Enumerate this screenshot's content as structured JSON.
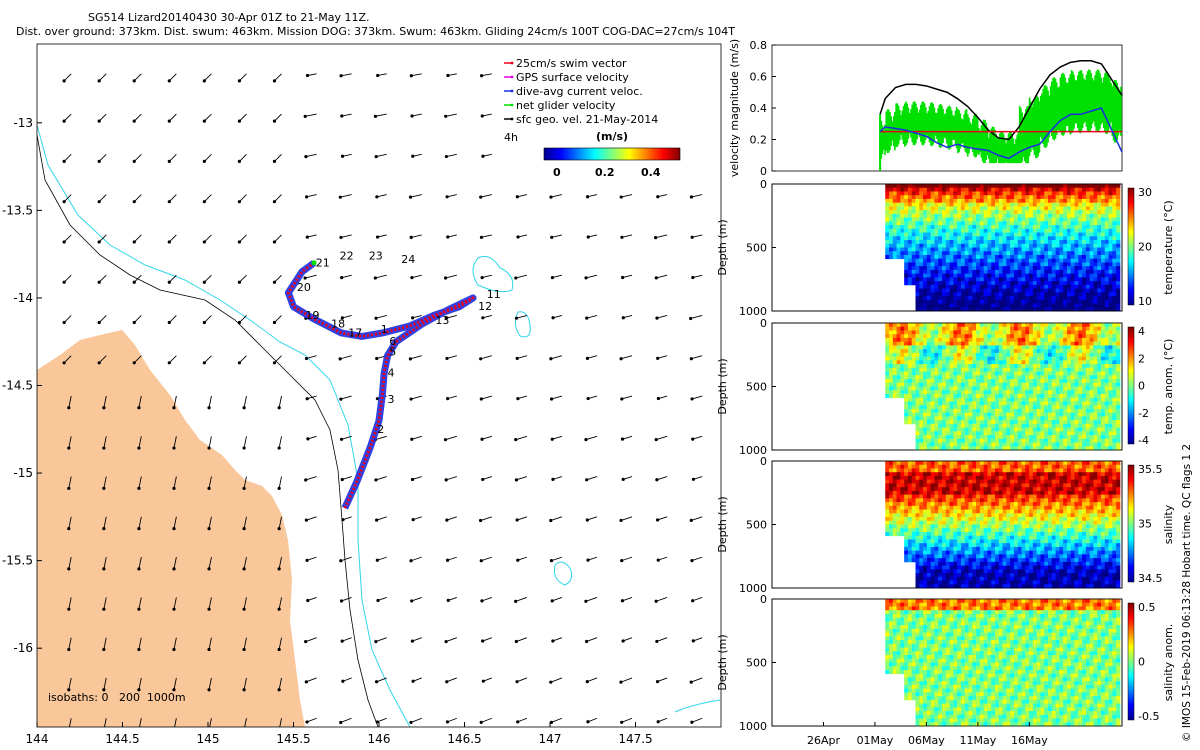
{
  "title": {
    "line1": "SG514 Lizard20140430 30-Apr 01Z to 21-May 11Z.",
    "line2": "Dist. over ground: 373km. Dist. swum: 463km. Mission DOG: 373km. Swum: 463km. Gliding 24cm/s 100T COG-DAC=27cm/s 104T"
  },
  "colors": {
    "land": "#f9c79a",
    "coast200": "#33d6ea",
    "track_swim": "#e8001c",
    "track_dac": "#1a2ee0",
    "net_velocity": "#00e000",
    "gps_velocity": "#e000e0",
    "vel_black": "#000000"
  },
  "chart_data": [
    {
      "id": "map",
      "type": "scatter",
      "subtype": "quiver-map",
      "xlim": [
        144,
        148
      ],
      "ylim": [
        -16.45,
        -12.55
      ],
      "x_ticks": [
        "144",
        "144.5",
        "145",
        "145.5",
        "146",
        "146.5",
        "147",
        "147.5"
      ],
      "y_ticks": [
        "-13",
        "-13.5",
        "-14",
        "-14.5",
        "-15",
        "-15.5",
        "-16"
      ],
      "legend": [
        {
          "label": "25cm/s swim vector",
          "color": "#e8001c"
        },
        {
          "label": "GPS surface velocity",
          "color": "#e000e0"
        },
        {
          "label": "dive-avg current veloc.",
          "color": "#1a2ee0"
        },
        {
          "label": "net glider velocity",
          "color": "#00e000"
        },
        {
          "label": "sfc geo. vel. 21-May-2014",
          "color": "#000000"
        }
      ],
      "scale_label": "4h",
      "colorbar": {
        "label": "(m/s)",
        "ticks": [
          "0",
          "0.2",
          "0.4"
        ],
        "range": [
          0,
          0.5
        ]
      },
      "isobaths_label": "isobaths: 0   200  1000m",
      "track": [
        [
          145.8,
          -15.2
        ],
        [
          145.87,
          -15.05
        ],
        [
          145.95,
          -14.85
        ],
        [
          146.0,
          -14.7
        ],
        [
          146.02,
          -14.55
        ],
        [
          146.03,
          -14.43
        ],
        [
          146.05,
          -14.33
        ],
        [
          146.1,
          -14.25
        ],
        [
          146.25,
          -14.15
        ],
        [
          146.4,
          -14.07
        ],
        [
          146.55,
          -14.0
        ],
        [
          146.47,
          -14.05
        ],
        [
          146.32,
          -14.1
        ],
        [
          146.18,
          -14.16
        ],
        [
          146.02,
          -14.2
        ],
        [
          145.9,
          -14.22
        ],
        [
          145.78,
          -14.2
        ],
        [
          145.62,
          -14.12
        ],
        [
          145.5,
          -14.05
        ],
        [
          145.47,
          -13.97
        ],
        [
          145.55,
          -13.85
        ],
        [
          145.62,
          -13.8
        ]
      ],
      "labels": [
        {
          "t": "1",
          "x": 146.01,
          "y": -14.2
        },
        {
          "t": "2",
          "x": 145.99,
          "y": -14.77
        },
        {
          "t": "3",
          "x": 146.05,
          "y": -14.6
        },
        {
          "t": "4",
          "x": 146.05,
          "y": -14.45
        },
        {
          "t": "5",
          "x": 146.06,
          "y": -14.33
        },
        {
          "t": "6",
          "x": 146.06,
          "y": -14.27
        },
        {
          "t": "11",
          "x": 146.63,
          "y": -14.0
        },
        {
          "t": "12",
          "x": 146.58,
          "y": -14.07
        },
        {
          "t": "13",
          "x": 146.33,
          "y": -14.15
        },
        {
          "t": "17",
          "x": 145.82,
          "y": -14.22
        },
        {
          "t": "18",
          "x": 145.72,
          "y": -14.17
        },
        {
          "t": "19",
          "x": 145.57,
          "y": -14.12
        },
        {
          "t": "20",
          "x": 145.52,
          "y": -13.96
        },
        {
          "t": "21",
          "x": 145.63,
          "y": -13.82
        },
        {
          "t": "22",
          "x": 145.77,
          "y": -13.78
        },
        {
          "t": "23",
          "x": 145.94,
          "y": -13.78
        },
        {
          "t": "24",
          "x": 146.13,
          "y": -13.8
        }
      ]
    },
    {
      "id": "velocity",
      "type": "line",
      "ylabel": "velocity magnitude (m/s)",
      "ylim": [
        0,
        0.8
      ],
      "y_ticks": [
        "0",
        "0.2",
        "0.4",
        "0.6",
        "0.8"
      ],
      "xlim": [
        -10,
        24
      ],
      "series": [
        {
          "color": "#000000",
          "x": [
            0.5,
            1,
            2,
            3,
            4,
            5,
            6,
            7,
            8,
            9,
            10,
            11,
            12,
            13,
            14,
            15,
            16,
            17,
            18,
            19,
            20,
            21,
            22,
            23,
            24
          ],
          "y": [
            0.36,
            0.46,
            0.53,
            0.55,
            0.55,
            0.54,
            0.52,
            0.5,
            0.46,
            0.41,
            0.34,
            0.26,
            0.21,
            0.2,
            0.28,
            0.4,
            0.52,
            0.61,
            0.66,
            0.69,
            0.7,
            0.7,
            0.68,
            0.58,
            0.48
          ]
        },
        {
          "color": "#e8001c",
          "x": [
            0.5,
            14.5,
            24
          ],
          "y": [
            0.25,
            0.25,
            0.25
          ]
        },
        {
          "color": "#1a2ee0",
          "x": [
            0.5,
            1,
            2,
            3,
            4,
            5,
            6,
            7,
            8,
            9,
            10,
            11,
            12,
            13,
            14,
            15,
            16,
            17,
            18,
            19,
            20,
            21,
            22,
            23,
            24
          ],
          "y": [
            0.25,
            0.28,
            0.27,
            0.26,
            0.24,
            0.22,
            0.18,
            0.15,
            0.17,
            0.15,
            0.14,
            0.13,
            0.1,
            0.08,
            0.12,
            0.15,
            0.17,
            0.25,
            0.32,
            0.36,
            0.36,
            0.38,
            0.4,
            0.26,
            0.12
          ]
        }
      ]
    },
    {
      "id": "temperature",
      "type": "heatmap",
      "ylabel": "Depth (m)",
      "cbar_label": "temperature (°C)",
      "cbar_ticks": [
        "30",
        "20",
        "10"
      ],
      "range": [
        5,
        30
      ],
      "y_ticks": [
        "0",
        "500",
        "1000"
      ]
    },
    {
      "id": "temp_anom",
      "type": "heatmap",
      "ylabel": "Depth (m)",
      "cbar_label": "temp. anom. (°C)",
      "cbar_ticks": [
        "4",
        "2",
        "0",
        "-2",
        "-4"
      ],
      "range": [
        -4,
        4
      ],
      "y_ticks": [
        "0",
        "500",
        "1000"
      ]
    },
    {
      "id": "salinity",
      "type": "heatmap",
      "ylabel": "Depth (m)",
      "cbar_label": "salinity",
      "cbar_ticks": [
        "35.5",
        "35",
        "34.5"
      ],
      "range": [
        34.4,
        35.8
      ],
      "y_ticks": [
        "0",
        "500",
        "1000"
      ]
    },
    {
      "id": "sal_anom",
      "type": "heatmap",
      "ylabel": "Depth (m)",
      "cbar_label": "salinity anom.",
      "cbar_ticks": [
        "0.5",
        "0",
        "-0.5"
      ],
      "range": [
        -0.5,
        0.5
      ],
      "y_ticks": [
        "0",
        "500",
        "1000"
      ],
      "x_ticks": [
        "26Apr",
        "01May",
        "06May",
        "11May",
        "16May"
      ]
    }
  ],
  "footer": "© IMOS 15-Feb-2019 06:13:28 Hobart time. QC flags 1  2"
}
